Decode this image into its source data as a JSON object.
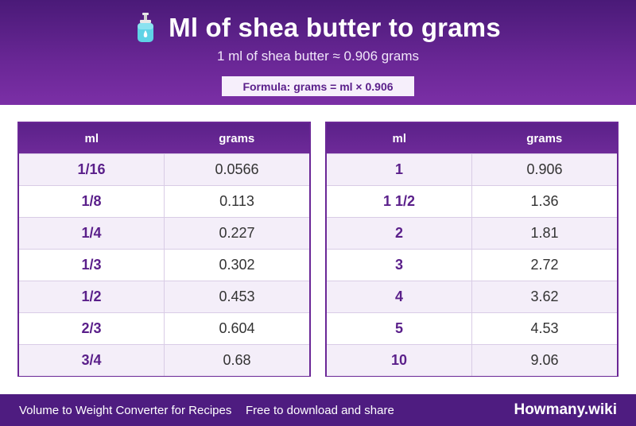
{
  "header": {
    "title": "Ml of shea butter to grams",
    "subtitle": "1 ml of shea butter ≈ 0.906 grams",
    "formula": "Formula: grams = ml × 0.906",
    "icon": "lotion-bottle-icon"
  },
  "tables": {
    "left": {
      "col_ml": "ml",
      "col_grams": "grams",
      "rows": [
        {
          "ml": "1/16",
          "g": "0.0566"
        },
        {
          "ml": "1/8",
          "g": "0.113"
        },
        {
          "ml": "1/4",
          "g": "0.227"
        },
        {
          "ml": "1/3",
          "g": "0.302"
        },
        {
          "ml": "1/2",
          "g": "0.453"
        },
        {
          "ml": "2/3",
          "g": "0.604"
        },
        {
          "ml": "3/4",
          "g": "0.68"
        }
      ]
    },
    "right": {
      "col_ml": "ml",
      "col_grams": "grams",
      "rows": [
        {
          "ml": "1",
          "g": "0.906"
        },
        {
          "ml": "1 1/2",
          "g": "1.36"
        },
        {
          "ml": "2",
          "g": "1.81"
        },
        {
          "ml": "3",
          "g": "2.72"
        },
        {
          "ml": "4",
          "g": "3.62"
        },
        {
          "ml": "5",
          "g": "4.53"
        },
        {
          "ml": "10",
          "g": "9.06"
        }
      ]
    }
  },
  "footer": {
    "site_name": "Volume to Weight Converter for Recipes",
    "tagline": "Free to download and share",
    "brand": "Howmany.wiki"
  },
  "colors": {
    "accent": "#6a2796",
    "header_dark": "#4a1a78",
    "row_alt": "#f4eef9"
  }
}
